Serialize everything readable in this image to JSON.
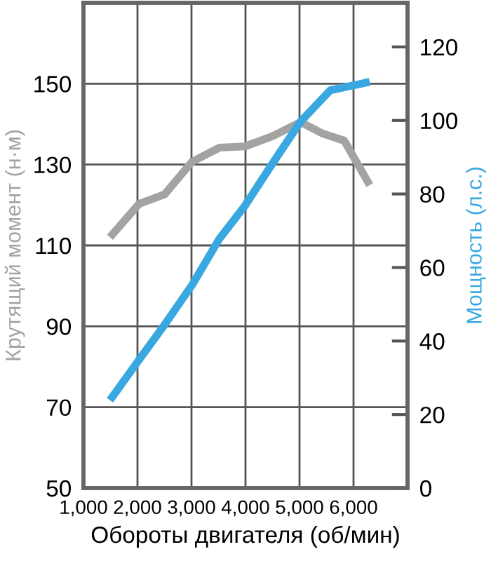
{
  "chart_data": {
    "type": "line",
    "xlabel": "Обороты двигателя (об/мин)",
    "ylabel": "Крутящий момент (н·м)",
    "y2label": "Мощность (л.с.)",
    "xlim": [
      1000,
      7000
    ],
    "xticks": [
      {
        "value": 1000,
        "label": "1,000"
      },
      {
        "value": 2000,
        "label": "2,000"
      },
      {
        "value": 3000,
        "label": "3,000"
      },
      {
        "value": 4000,
        "label": "4,000"
      },
      {
        "value": 5000,
        "label": "5,000"
      },
      {
        "value": 6000,
        "label": "6,000"
      }
    ],
    "ylim": [
      50,
      170
    ],
    "yticks": [
      50,
      70,
      90,
      110,
      130,
      150
    ],
    "y2lim": [
      0,
      132
    ],
    "y2ticks": [
      0,
      20,
      40,
      60,
      80,
      100,
      120
    ],
    "grid": true,
    "marker": "none",
    "line_style": "solid",
    "series": [
      {
        "color": "#a3a3a3",
        "x": [
          1490,
          2030,
          2500,
          3010,
          3520,
          3990,
          4500,
          5020,
          5440,
          5830,
          6300
        ],
        "values": [
          112,
          120.3,
          122.6,
          130.7,
          134.2,
          134.5,
          137,
          140.5,
          137.6,
          135.9,
          124.9
        ]
      },
      {
        "color": "#3aa8e0",
        "axis": "y2",
        "x": [
          1490,
          2030,
          2500,
          3010,
          3520,
          3990,
          4500,
          5020,
          5570,
          6300
        ],
        "values": [
          23.9,
          34.9,
          44.4,
          55.2,
          67.9,
          76.8,
          88.3,
          99.7,
          108.2,
          110.5
        ]
      }
    ]
  }
}
